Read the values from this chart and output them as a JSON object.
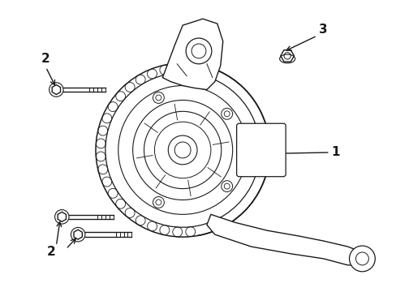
{
  "background_color": "#ffffff",
  "line_color": "#1a1a1a",
  "line_width": 1.0,
  "label_1": "1",
  "label_2": "2",
  "label_3": "3",
  "label_fontsize": 11,
  "figsize": [
    4.89,
    3.6
  ],
  "dpi": 100
}
